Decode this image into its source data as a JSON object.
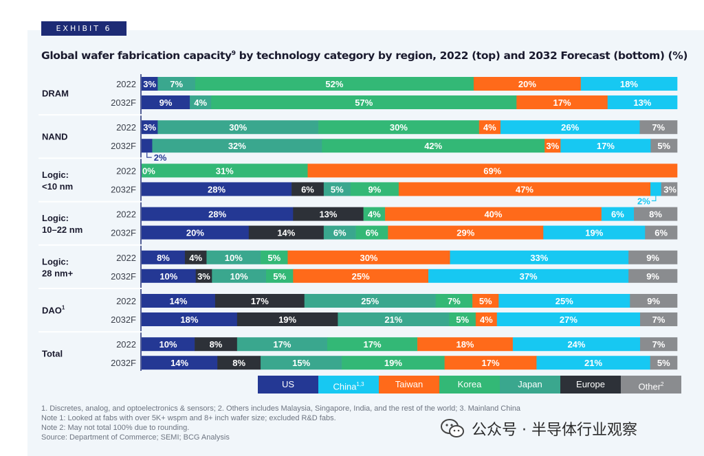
{
  "exhibit_label": "EXHIBIT 6",
  "title": "Global wafer fabrication capacity",
  "title_sup": "9",
  "title_rest": " by technology category by region, 2022 (top) and 2032 Forecast (bottom) (%)",
  "colors": {
    "US": "#243894",
    "Europe": "#2d3138",
    "Japan": "#3aa78e",
    "Korea": "#33b876",
    "Taiwan": "#ff6a1a",
    "China": "#17c8f2",
    "Other": "#8a8c8f"
  },
  "legend": [
    {
      "key": "US",
      "label": "US",
      "sup": ""
    },
    {
      "key": "China",
      "label": "China",
      "sup": "1,3"
    },
    {
      "key": "Taiwan",
      "label": "Taiwan",
      "sup": ""
    },
    {
      "key": "Korea",
      "label": "Korea",
      "sup": ""
    },
    {
      "key": "Japan",
      "label": "Japan",
      "sup": ""
    },
    {
      "key": "Europe",
      "label": "Europe",
      "sup": ""
    },
    {
      "key": "Other",
      "label": "Other",
      "sup": "2"
    }
  ],
  "chart_data": {
    "type": "bar",
    "orientation": "horizontal-stacked-100",
    "series_order": [
      "US",
      "Europe",
      "Japan",
      "Korea",
      "Taiwan",
      "China",
      "Other"
    ],
    "groups": [
      {
        "name": "DRAM",
        "name_sup": "",
        "rows": [
          {
            "label": "2022",
            "values": {
              "US": 3,
              "Europe": 0,
              "Japan": 7,
              "Korea": 52,
              "Taiwan": 20,
              "China": 18,
              "Other": 0
            },
            "labels": {
              "US": "3%",
              "Japan": "7%",
              "Korea": "52%",
              "Taiwan": "20%",
              "China": "18%"
            }
          },
          {
            "label": "2032F",
            "values": {
              "US": 9,
              "Europe": 0,
              "Japan": 4,
              "Korea": 57,
              "Taiwan": 17,
              "China": 13,
              "Other": 0
            },
            "labels": {
              "US": "9%",
              "Japan": "4%",
              "Korea": "57%",
              "Taiwan": "17%",
              "China": "13%"
            }
          }
        ]
      },
      {
        "name": "NAND",
        "name_sup": "",
        "rows": [
          {
            "label": "2022",
            "values": {
              "US": 3,
              "Europe": 0,
              "Japan": 30,
              "Korea": 30,
              "Taiwan": 4,
              "China": 26,
              "Other": 7
            },
            "labels": {
              "US": "3%",
              "Japan": "30%",
              "Korea": "30%",
              "Taiwan": "4%",
              "China": "26%",
              "Other": "7%"
            }
          },
          {
            "label": "2032F",
            "values": {
              "US": 2,
              "Europe": 0,
              "Japan": 32,
              "Korea": 42,
              "Taiwan": 3,
              "China": 17,
              "Other": 5
            },
            "labels": {
              "Japan": "32%",
              "Korea": "42%",
              "Taiwan": "3%",
              "China": "17%",
              "Other": "5%"
            },
            "callouts": [
              {
                "key": "US",
                "text": "2%"
              }
            ]
          }
        ]
      },
      {
        "name": "Logic:\n<10 nm",
        "name_sup": "",
        "rows": [
          {
            "label": "2022",
            "values": {
              "US": 0,
              "Europe": 0,
              "Japan": 0,
              "Korea": 31,
              "Taiwan": 69,
              "China": 0,
              "Other": 0
            },
            "labels": {
              "US": "0%",
              "Korea": "31%",
              "Taiwan": "69%"
            }
          },
          {
            "label": "2032F",
            "values": {
              "US": 28,
              "Europe": 6,
              "Japan": 5,
              "Korea": 9,
              "Taiwan": 47,
              "China": 2,
              "Other": 3
            },
            "labels": {
              "US": "28%",
              "Europe": "6%",
              "Japan": "5%",
              "Korea": "9%",
              "Taiwan": "47%",
              "Other": "3%"
            },
            "callouts": [
              {
                "key": "China",
                "text": "2%"
              }
            ]
          }
        ]
      },
      {
        "name": "Logic:\n10–22 nm",
        "name_sup": "",
        "rows": [
          {
            "label": "2022",
            "values": {
              "US": 28,
              "Europe": 13,
              "Japan": 0,
              "Korea": 4,
              "Taiwan": 40,
              "China": 6,
              "Other": 8
            },
            "labels": {
              "US": "28%",
              "Europe": "13%",
              "Korea": "4%",
              "Taiwan": "40%",
              "China": "6%",
              "Other": "8%"
            }
          },
          {
            "label": "2032F",
            "values": {
              "US": 20,
              "Europe": 14,
              "Japan": 6,
              "Korea": 6,
              "Taiwan": 29,
              "China": 19,
              "Other": 6
            },
            "labels": {
              "US": "20%",
              "Europe": "14%",
              "Japan": "6%",
              "Korea": "6%",
              "Taiwan": "29%",
              "China": "19%",
              "Other": "6%"
            }
          }
        ]
      },
      {
        "name": "Logic:\n28 nm+",
        "name_sup": "",
        "rows": [
          {
            "label": "2022",
            "values": {
              "US": 8,
              "Europe": 4,
              "Japan": 10,
              "Korea": 5,
              "Taiwan": 30,
              "China": 33,
              "Other": 9
            },
            "labels": {
              "US": "8%",
              "Europe": "4%",
              "Japan": "10%",
              "Korea": "5%",
              "Taiwan": "30%",
              "China": "33%",
              "Other": "9%"
            }
          },
          {
            "label": "2032F",
            "values": {
              "US": 10,
              "Europe": 3,
              "Japan": 10,
              "Korea": 5,
              "Taiwan": 25,
              "China": 37,
              "Other": 9
            },
            "labels": {
              "US": "10%",
              "Europe": "3%",
              "Japan": "10%",
              "Korea": "5%",
              "Taiwan": "25%",
              "China": "37%",
              "Other": "9%"
            }
          }
        ]
      },
      {
        "name": "DAO",
        "name_sup": "1",
        "rows": [
          {
            "label": "2022",
            "values": {
              "US": 14,
              "Europe": 17,
              "Japan": 25,
              "Korea": 7,
              "Taiwan": 5,
              "China": 25,
              "Other": 9
            },
            "labels": {
              "US": "14%",
              "Europe": "17%",
              "Japan": "25%",
              "Korea": "7%",
              "Taiwan": "5%",
              "China": "25%",
              "Other": "9%"
            }
          },
          {
            "label": "2032F",
            "values": {
              "US": 18,
              "Europe": 19,
              "Japan": 21,
              "Korea": 5,
              "Taiwan": 4,
              "China": 27,
              "Other": 7
            },
            "labels": {
              "US": "18%",
              "Europe": "19%",
              "Japan": "21%",
              "Korea": "5%",
              "Taiwan": "4%",
              "China": "27%",
              "Other": "7%"
            }
          }
        ]
      },
      {
        "name": "Total",
        "name_sup": "",
        "rows": [
          {
            "label": "2022",
            "values": {
              "US": 10,
              "Europe": 8,
              "Japan": 17,
              "Korea": 17,
              "Taiwan": 18,
              "China": 24,
              "Other": 7
            },
            "labels": {
              "US": "10%",
              "Europe": "8%",
              "Japan": "17%",
              "Korea": "17%",
              "Taiwan": "18%",
              "China": "24%",
              "Other": "7%"
            }
          },
          {
            "label": "2032F",
            "values": {
              "US": 14,
              "Europe": 8,
              "Japan": 15,
              "Korea": 19,
              "Taiwan": 17,
              "China": 21,
              "Other": 5
            },
            "labels": {
              "US": "14%",
              "Europe": "8%",
              "Japan": "15%",
              "Korea": "19%",
              "Taiwan": "17%",
              "China": "21%",
              "Other": "5%"
            }
          }
        ]
      }
    ]
  },
  "notes": [
    "1. Discretes, analog, and optoelectronics & sensors; 2. Others includes Malaysia, Singapore, India, and the rest of the world; 3. Mainland China",
    "Note 1: Looked at fabs with over 5K+ wspm and 8+ inch wafer size; excluded R&D fabs.",
    "Note 2: May not total 100% due to rounding.",
    "Source: Department of Commerce; SEMI; BCG Analysis"
  ],
  "watermark": "公众号 · 半导体行业观察"
}
